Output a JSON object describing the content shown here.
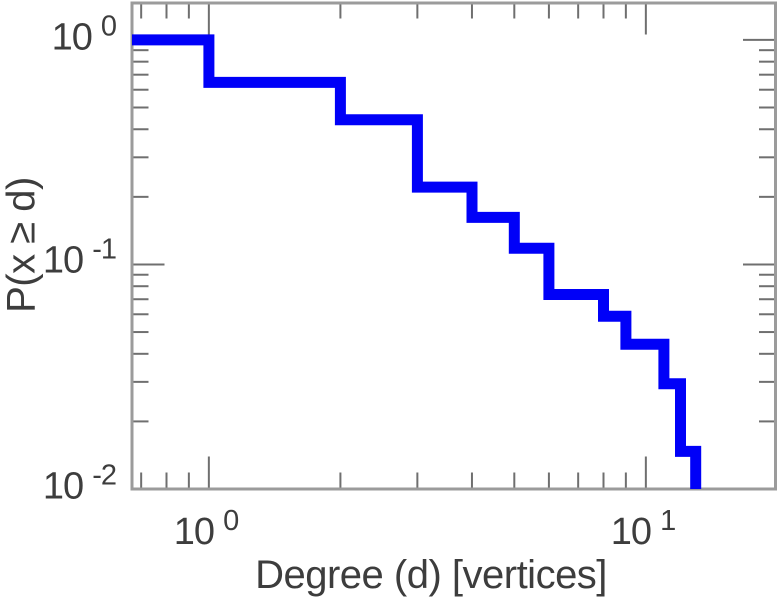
{
  "figure": {
    "background": "#ffffff",
    "text_color": "#3d3d3d"
  },
  "chart_data": {
    "type": "line",
    "subtype": "step-ccdf",
    "title": "",
    "xlabel": "Degree (d) [vertices]",
    "ylabel": "P(x ≥ d)",
    "x_scale": "log",
    "y_scale": "log",
    "xlim": [
      0.667,
      19.8
    ],
    "ylim": [
      0.01,
      1.46
    ],
    "grid": false,
    "legend": false,
    "line_color": "#0000f8",
    "line_width": 11,
    "frame_color": "#9b9b9b",
    "tick_color": "#6f6f6f",
    "x_major_ticks": [
      1,
      10
    ],
    "x_minor_ticks": [
      0.7,
      0.8,
      0.9,
      2,
      3,
      4,
      5,
      6,
      7,
      8,
      9
    ],
    "y_major_ticks": [
      1,
      0.1,
      0.01
    ],
    "y_minor_ticks": [
      0.9,
      0.8,
      0.7,
      0.6,
      0.5,
      0.4,
      0.3,
      0.2,
      0.09,
      0.08,
      0.07,
      0.06,
      0.05,
      0.04,
      0.03,
      0.02
    ],
    "y_tick_labels": [
      {
        "base": "10",
        "exp": "0",
        "value": 1
      },
      {
        "base": "10",
        "exp": "-1",
        "value": 0.1
      },
      {
        "base": "10",
        "exp": "-2",
        "value": 0.01
      }
    ],
    "x_tick_labels": [
      {
        "base": "10",
        "exp": "0",
        "value": 1
      },
      {
        "base": "10",
        "exp": "1",
        "value": 10
      }
    ],
    "levels": [
      {
        "x_start": 0.667,
        "x_end": 1,
        "p": 1.0
      },
      {
        "x_start": 1,
        "x_end": 2,
        "p": 0.647
      },
      {
        "x_start": 2,
        "x_end": 3,
        "p": 0.441
      },
      {
        "x_start": 3,
        "x_end": 4,
        "p": 0.221
      },
      {
        "x_start": 4,
        "x_end": 5,
        "p": 0.162
      },
      {
        "x_start": 5,
        "x_end": 6,
        "p": 0.118
      },
      {
        "x_start": 6,
        "x_end": 8,
        "p": 0.0735
      },
      {
        "x_start": 8,
        "x_end": 9,
        "p": 0.0588
      },
      {
        "x_start": 9,
        "x_end": 11,
        "p": 0.0441
      },
      {
        "x_start": 11,
        "x_end": 12,
        "p": 0.0294
      },
      {
        "x_start": 12,
        "x_end": 13,
        "p": 0.0147
      },
      {
        "x_start": 13,
        "x_end": 13,
        "p": 0.01
      }
    ],
    "step_degrees": [
      1,
      2,
      3,
      4,
      5,
      6,
      8,
      9,
      11,
      12,
      13
    ],
    "p_after_step": [
      0.647,
      0.441,
      0.221,
      0.162,
      0.118,
      0.0735,
      0.0588,
      0.0441,
      0.0294,
      0.0147,
      0.01
    ]
  }
}
